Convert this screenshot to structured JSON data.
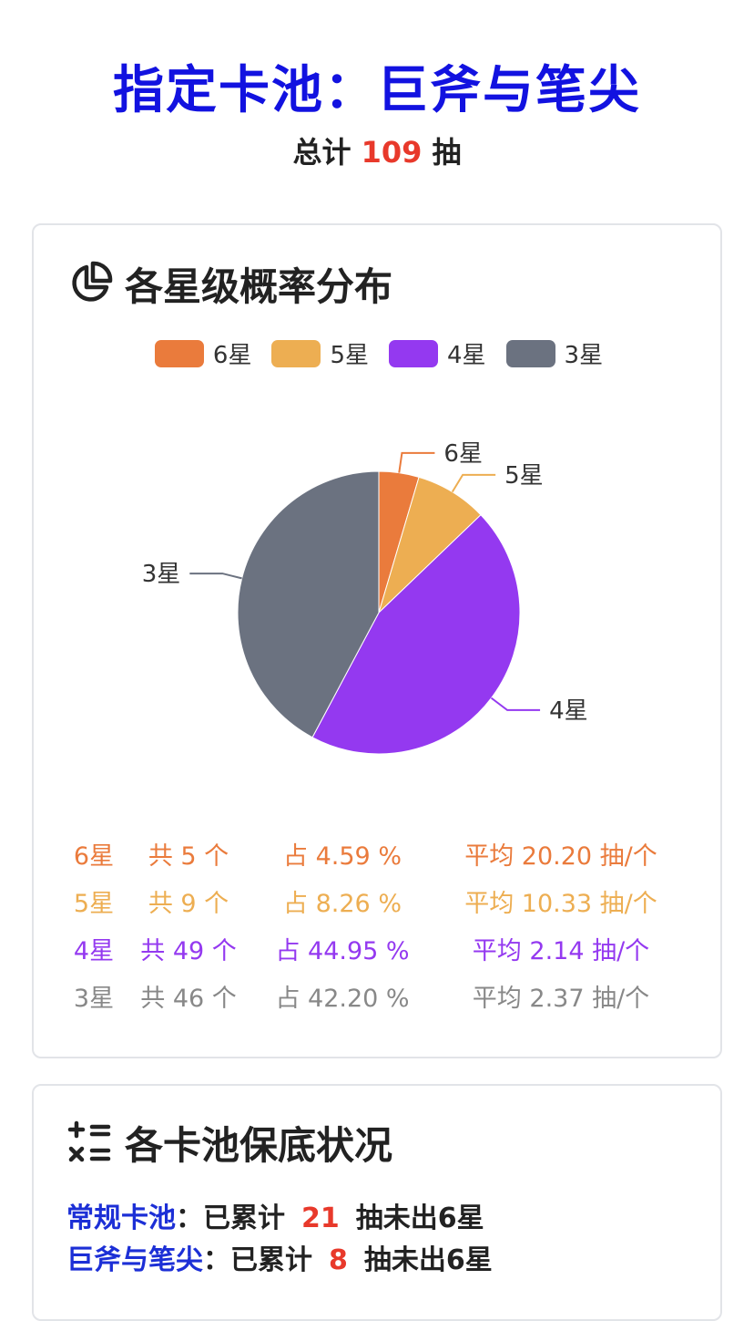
{
  "header": {
    "title": "指定卡池：巨斧与笔尖",
    "total_prefix": "总计",
    "total_count": "109",
    "total_suffix": "抽"
  },
  "distribution_card": {
    "heading": "各星级概率分布",
    "icon": "pie-chart-icon",
    "legend": [
      {
        "label": "6星",
        "color": "#ea7b3c"
      },
      {
        "label": "5星",
        "color": "#edae52"
      },
      {
        "label": "4星",
        "color": "#9439f0"
      },
      {
        "label": "3星",
        "color": "#6b7280"
      }
    ],
    "stats": [
      {
        "star": "6星",
        "count": "共 5 个",
        "pct": "占 4.59 %",
        "avg": "平均 20.20 抽/个",
        "color": "#ea7b3c"
      },
      {
        "star": "5星",
        "count": "共 9 个",
        "pct": "占 8.26 %",
        "avg": "平均 10.33 抽/个",
        "color": "#edae52"
      },
      {
        "star": "4星",
        "count": "共 49 个",
        "pct": "占 44.95 %",
        "avg": "平均 2.14 抽/个",
        "color": "#9439f0"
      },
      {
        "star": "3星",
        "count": "共 46 个",
        "pct": "占 42.20 %",
        "avg": "平均 2.37 抽/个",
        "color": "#888888"
      }
    ]
  },
  "chart_data": {
    "type": "pie",
    "categories": [
      "6星",
      "5星",
      "4星",
      "3星"
    ],
    "values": [
      5,
      9,
      49,
      46
    ],
    "colors": [
      "#ea7b3c",
      "#edae52",
      "#9439f0",
      "#6b7280"
    ],
    "legend_position": "top-center",
    "title": ""
  },
  "pity_card": {
    "heading": "各卡池保底状况",
    "icon": "calculator-icon",
    "rows": [
      {
        "pool": "常规卡池",
        "sep": "：已累计",
        "count": "21",
        "suffix": "抽未出6星"
      },
      {
        "pool": "巨斧与笔尖",
        "sep": "：已累计",
        "count": "8",
        "suffix": "抽未出6星"
      }
    ]
  }
}
